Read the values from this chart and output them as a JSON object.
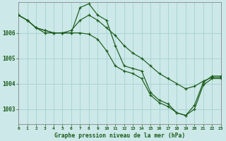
{
  "bg_color": "#cce8e8",
  "line_color": "#1a5c1a",
  "grid_color": "#aad4d4",
  "title": "Graphe pression niveau de la mer (hPa)",
  "ylim": [
    1002.4,
    1007.2
  ],
  "xlim": [
    0,
    23
  ],
  "yticks": [
    1003,
    1004,
    1005,
    1006
  ],
  "xticks": [
    0,
    1,
    2,
    3,
    4,
    5,
    6,
    7,
    8,
    9,
    10,
    11,
    12,
    13,
    14,
    15,
    16,
    17,
    18,
    19,
    20,
    21,
    22,
    23
  ],
  "series": [
    [
      1006.7,
      1006.5,
      1006.2,
      1006.1,
      1006.0,
      1006.0,
      1006.1,
      1006.5,
      1006.7,
      1006.5,
      1006.2,
      1005.9,
      1005.5,
      1005.2,
      1005.0,
      1004.7,
      1004.4,
      1004.2,
      1004.0,
      1003.8,
      1003.9,
      1004.1,
      1004.25,
      1004.25
    ],
    [
      1006.7,
      1006.5,
      1006.2,
      1006.1,
      1006.0,
      1006.0,
      1006.0,
      1007.0,
      1007.15,
      1006.7,
      1006.5,
      1005.5,
      1004.7,
      1004.6,
      1004.5,
      1003.65,
      1003.35,
      1003.2,
      1002.85,
      1002.75,
      1003.15,
      1004.05,
      1004.3,
      1004.3
    ],
    [
      1006.7,
      1006.5,
      1006.2,
      1006.0,
      1006.0,
      1006.0,
      1006.0,
      1006.0,
      1005.95,
      1005.75,
      1005.3,
      1004.7,
      1004.5,
      1004.4,
      1004.2,
      1003.55,
      1003.25,
      1003.1,
      1002.85,
      1002.75,
      1003.0,
      1003.95,
      1004.2,
      1004.2
    ]
  ]
}
